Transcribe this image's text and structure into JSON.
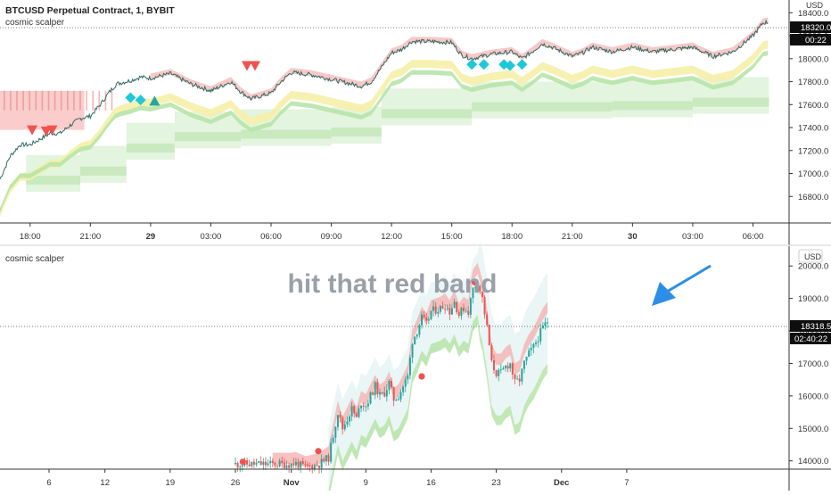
{
  "top_panel": {
    "symbol_title": "BTCUSD Perpetual Contract, 1, BYBIT",
    "indicator_name": "cosmic scalper",
    "currency": "USD",
    "y_ticks": [
      "18400.0",
      "18200.0",
      "18000.0",
      "17800.0",
      "17600.0",
      "17400.0",
      "17200.0",
      "17000.0",
      "16800.0"
    ],
    "x_ticks": [
      "18:00",
      "21:00",
      "29",
      "03:00",
      "06:00",
      "09:00",
      "12:00",
      "15:00",
      "18:00",
      "21:00",
      "30",
      "03:00",
      "06:00"
    ],
    "price_label": "18320.0",
    "countdown_label": "00:22"
  },
  "bottom_panel": {
    "indicator_name": "cosmic scalper",
    "annotation": "hit that red band",
    "currency": "USD",
    "y_ticks": [
      "20000.0",
      "19000.0",
      "18000.0",
      "17000.0",
      "16000.0",
      "15000.0",
      "14000.0"
    ],
    "x_ticks": [
      "6",
      "12",
      "19",
      "26",
      "Nov",
      "9",
      "16",
      "23",
      "Dec",
      "7"
    ],
    "price_label": "18318.5",
    "countdown_label": "02:40:22"
  },
  "colors": {
    "bull": "#26a69a",
    "bear": "#ef5350",
    "red_band": "#f4b6b6",
    "green_band": "#b7e4a8",
    "yellow_band": "#f6f0a8",
    "signal_cyan": "#1ec8d8",
    "arrow_blue": "#2c8ee6",
    "axis_text": "#333333"
  },
  "chart_data": [
    {
      "type": "line",
      "title": "BTCUSD Perpetual Contract, 1, BYBIT",
      "timeframe": "1",
      "ylim": [
        16600,
        18480
      ],
      "y_ticks": [
        18400,
        18200,
        18000,
        17800,
        17600,
        17400,
        17200,
        17000,
        16800
      ],
      "x_ticks": [
        "18:00",
        "21:00",
        "29",
        "03:00",
        "06:00",
        "09:00",
        "12:00",
        "15:00",
        "18:00",
        "21:00",
        "30",
        "03:00",
        "06:00"
      ],
      "x_range_hours": [
        -1.5,
        37.8
      ],
      "series": [
        {
          "values_x_hours": [
            -1.5,
            -1,
            -0.5,
            0,
            0.5,
            1,
            1.5,
            2,
            2.5,
            3,
            3.5,
            3.9,
            4.3,
            5,
            5.5,
            6,
            7,
            8,
            9,
            10,
            10.5,
            11,
            12,
            12.5,
            13,
            14,
            15,
            16,
            16.5,
            17,
            18,
            18.5,
            19,
            20,
            21,
            21.5,
            22,
            23,
            24,
            24.5,
            25,
            25.5,
            26,
            27,
            27.5,
            28,
            29,
            30,
            31,
            32,
            33,
            34,
            35,
            36,
            36.5,
            36.8
          ],
          "values": [
            16950,
            17150,
            17250,
            17250,
            17300,
            17350,
            17350,
            17420,
            17480,
            17500,
            17600,
            17700,
            17780,
            17810,
            17840,
            17830,
            17870,
            17780,
            17720,
            17800,
            17710,
            17650,
            17700,
            17800,
            17880,
            17860,
            17820,
            17780,
            17760,
            17800,
            18050,
            18080,
            18150,
            18150,
            18140,
            18030,
            18000,
            18040,
            18060,
            18000,
            18060,
            18130,
            18100,
            18020,
            18050,
            18100,
            18060,
            18100,
            18060,
            18080,
            18100,
            18020,
            18060,
            18200,
            18310,
            18320
          ]
        }
      ],
      "signals": {
        "down_triangles_red": [
          [
            0.1,
            17380
          ],
          [
            0.8,
            17370
          ],
          [
            1.1,
            17380
          ],
          [
            10.8,
            17940
          ],
          [
            11.2,
            17940
          ]
        ],
        "up_triangle_green": [
          [
            6.2,
            17630
          ]
        ],
        "diamonds_cyan": [
          [
            5.0,
            17660
          ],
          [
            5.5,
            17640
          ],
          [
            22.0,
            17950
          ],
          [
            22.6,
            17950
          ],
          [
            23.6,
            17950
          ],
          [
            23.9,
            17940
          ],
          [
            24.5,
            17950
          ]
        ]
      },
      "current_price": 18320.0
    },
    {
      "type": "line",
      "title": "hit that red band",
      "ylim": [
        13800,
        20500
      ],
      "y_ticks": [
        20000,
        19000,
        18000,
        17000,
        16000,
        15000,
        14000
      ],
      "x_ticks": [
        "6",
        "12",
        "19",
        "26",
        "Nov",
        "9",
        "16",
        "23",
        "Dec",
        "7"
      ],
      "series": [
        {
          "values_x_day": [
            32.0,
            32.5,
            33.5,
            34.0,
            35.0,
            36.0,
            37.0,
            37.5,
            38.5,
            39.0,
            39.5,
            40.0,
            41.0,
            41.5,
            42.0,
            42.5,
            43.0,
            43.5,
            44.0,
            44.5,
            45.0,
            45.5,
            46.0,
            46.5,
            47.0,
            48.0,
            48.5,
            49.0,
            49.5,
            50.0,
            50.5,
            51.0,
            51.5,
            52.0,
            52.5,
            53.0,
            53.5,
            54.0,
            54.5,
            55.0,
            55.5,
            56.0,
            56.5,
            57.0,
            57.5,
            58.0,
            58.5,
            59.0,
            59.5
          ],
          "values": [
            13900,
            13920,
            13800,
            13820,
            13900,
            14100,
            15500,
            15000,
            15600,
            15300,
            15800,
            15700,
            16300,
            16000,
            16100,
            16400,
            15900,
            16000,
            16300,
            16600,
            17700,
            18000,
            18400,
            18200,
            18600,
            18700,
            18800,
            18600,
            18900,
            18500,
            18700,
            18600,
            19300,
            19500,
            19000,
            18100,
            17000,
            16700,
            16700,
            16900,
            17000,
            16400,
            16500,
            17000,
            17300,
            17500,
            17800,
            18100,
            18300
          ]
        }
      ],
      "signals": {
        "red_dots": [
          [
            26.8,
            13970
          ],
          [
            34.9,
            14300
          ],
          [
            46.0,
            16600
          ],
          [
            51.7,
            19500
          ]
        ]
      },
      "current_price": 18318.5
    }
  ]
}
